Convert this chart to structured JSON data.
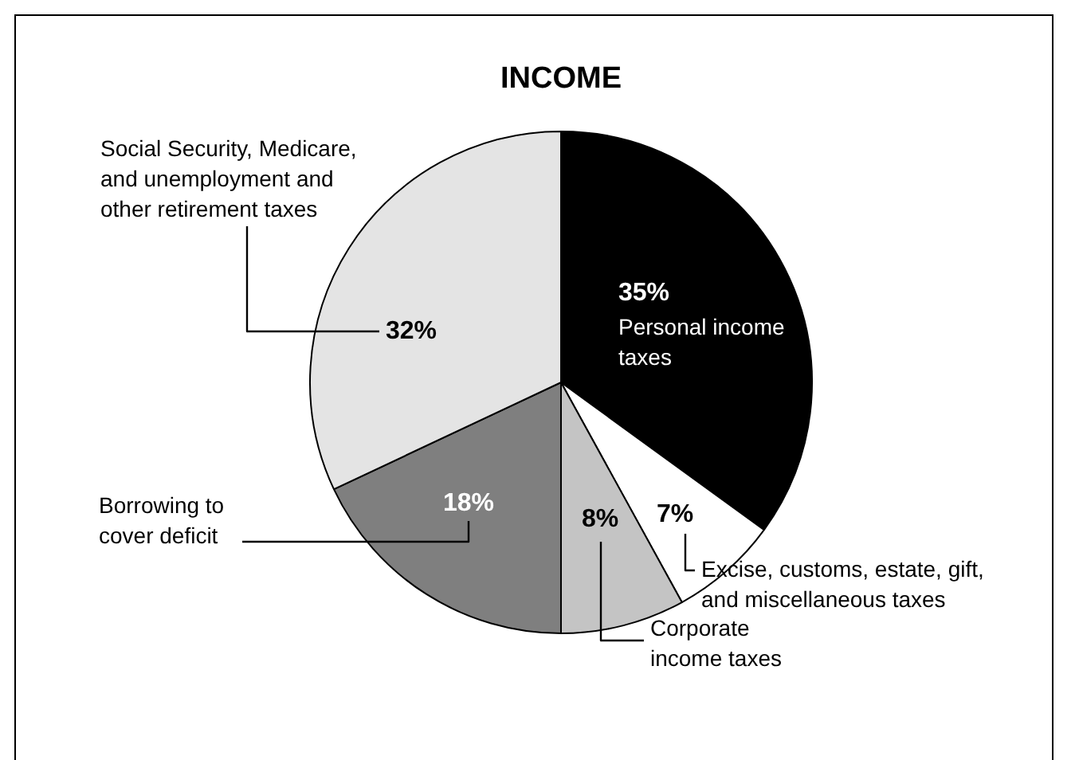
{
  "chart_data": {
    "type": "pie",
    "title": "INCOME",
    "categories": [
      "Personal income taxes",
      "Excise, customs, estate, gift, and miscellaneous taxes",
      "Corporate income taxes",
      "Borrowing to cover deficit",
      "Social Security, Medicare, and unemployment and other retirement taxes"
    ],
    "values": [
      35,
      7,
      8,
      18,
      32
    ],
    "value_labels": [
      "35%",
      "7%",
      "8%",
      "18%",
      "32%"
    ],
    "colors": [
      "#000000",
      "#ffffff",
      "#c4c4c4",
      "#7f7f7f",
      "#e4e4e4"
    ],
    "legend": false
  }
}
